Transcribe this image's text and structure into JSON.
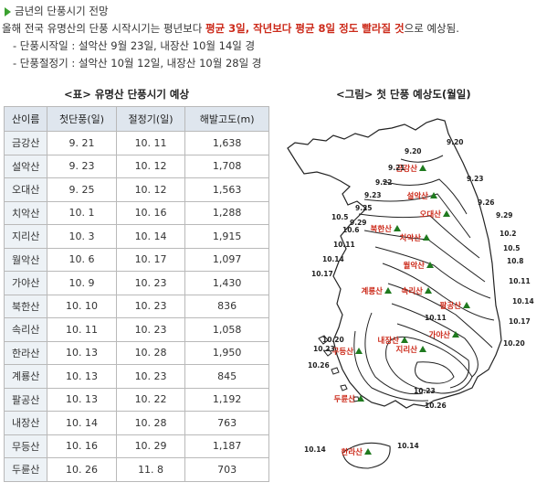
{
  "intro": {
    "title": "금년의 단풍시기 전망",
    "lead_1": "올해 전국 유명산의 단풍 시작시기는 평년보다 ",
    "highlight": "평균 3일, 작년보다 평균 8일 정도 빨라질 것",
    "lead_2": "으로 예상됨.",
    "start_line": "- 단풍시작일 : 설악산 9월 23일, 내장산 10월 14일 경",
    "peak_line": "- 단풍절정기 : 설악산 10월 12일, 내장산 10월 28일 경",
    "accent_color": "#3aa12f",
    "highlight_color": "#cc2a1a"
  },
  "table": {
    "caption": "<표> 유명산 단풍시기 예상",
    "headers": [
      "산이름",
      "첫단풍(일)",
      "절정기(일)",
      "해발고도(m)"
    ],
    "rows": [
      [
        "금강산",
        "9. 21",
        "10. 11",
        "1,638"
      ],
      [
        "설악산",
        "9. 23",
        "10. 12",
        "1,708"
      ],
      [
        "오대산",
        "9. 25",
        "10. 12",
        "1,563"
      ],
      [
        "치악산",
        "10. 1",
        "10. 16",
        "1,288"
      ],
      [
        "지리산",
        "10. 3",
        "10. 14",
        "1,915"
      ],
      [
        "월악산",
        "10. 6",
        "10. 17",
        "1,097"
      ],
      [
        "가야산",
        "10. 9",
        "10. 23",
        "1,430"
      ],
      [
        "북한산",
        "10. 10",
        "10. 23",
        "836"
      ],
      [
        "속리산",
        "10. 11",
        "10. 23",
        "1,058"
      ],
      [
        "한라산",
        "10. 13",
        "10. 28",
        "1,950"
      ],
      [
        "계룡산",
        "10. 13",
        "10. 23",
        "845"
      ],
      [
        "팔공산",
        "10. 13",
        "10. 22",
        "1,192"
      ],
      [
        "내장산",
        "10. 14",
        "10. 28",
        "763"
      ],
      [
        "무등산",
        "10. 16",
        "10. 29",
        "1,187"
      ],
      [
        "두륜산",
        "10. 26",
        "11. 8",
        "703"
      ]
    ]
  },
  "figure": {
    "caption": "<그림> 첫 단풍 예상도(월일)",
    "mountains": [
      "금강산",
      "설악산",
      "오대산",
      "치악산",
      "북한산",
      "월악산",
      "속리산",
      "계룡산",
      "팔공산",
      "가야산",
      "내장산",
      "지리산",
      "무등산",
      "두륜산",
      "한라산"
    ],
    "isoline_labels": [
      "9.20",
      "9.20",
      "9.21",
      "9.22",
      "9.23",
      "9.23",
      "9.25",
      "9.26",
      "9.29",
      "9.29",
      "10.2",
      "10.5",
      "10.8",
      "10.11",
      "10.14",
      "10.17",
      "10.20",
      "10.5",
      "10.6",
      "10.11",
      "10.14",
      "10.17",
      "10.11",
      "10.20",
      "10.23",
      "10.26",
      "10.23",
      "10.26",
      "10.14",
      "10.14"
    ],
    "marker_color": "#1f7a1f",
    "mountain_label_color": "#cc2a1a"
  }
}
